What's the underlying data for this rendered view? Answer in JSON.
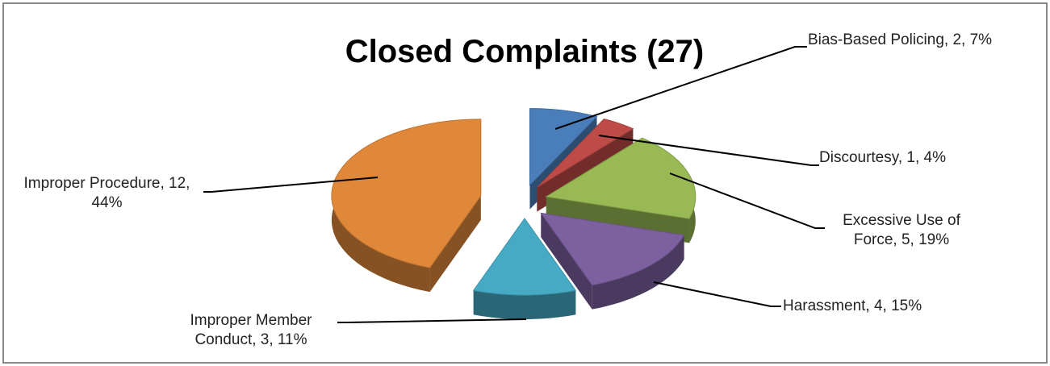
{
  "chart_data": {
    "type": "pie",
    "title": "Closed Complaints (27)",
    "values": [
      2,
      1,
      5,
      4,
      3,
      12
    ],
    "value_labels": [
      "Bias-Based Policing, 2, 7%",
      "Discourtesy, 1, 4%",
      "Excessive Use of Force, 5, 19%",
      "Harassment, 4, 15%",
      "Improper Member Conduct, 3, 11%",
      "Improper Procedure, 12, 44%"
    ],
    "colors": [
      "#4a7ebb",
      "#be4b48",
      "#98b954",
      "#7d60a0",
      "#46aac5",
      "#e0883a"
    ]
  }
}
